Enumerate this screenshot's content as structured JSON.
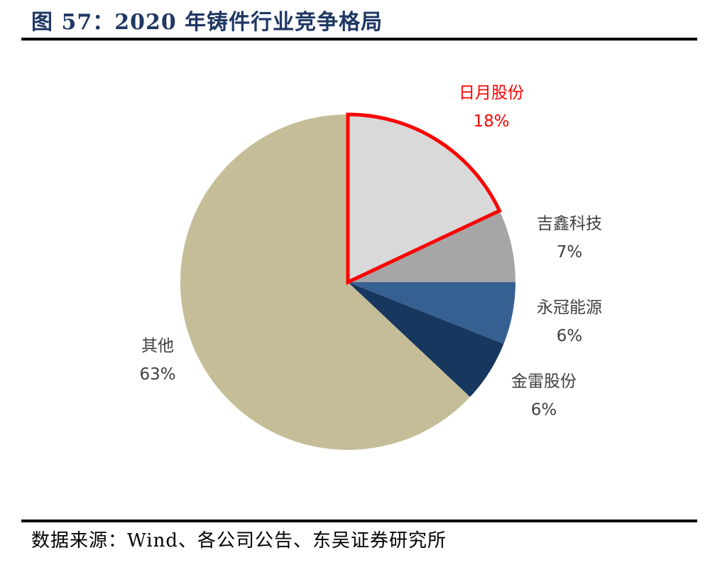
{
  "title": "图 57：2020 年铸件行业竞争格局",
  "source": "数据来源：Wind、各公司公告、东吴证券研究所",
  "colors": {
    "title": "#1f3864",
    "highlight": "#ff0000",
    "label": "#404040"
  },
  "chart_data": {
    "type": "pie",
    "slices": [
      {
        "name": "日月股份",
        "value": 18,
        "label": "18%",
        "color": "#d9d9d9",
        "highlight": true
      },
      {
        "name": "吉鑫科技",
        "value": 7,
        "label": "7%",
        "color": "#a6a6a6"
      },
      {
        "name": "永冠能源",
        "value": 6,
        "label": "6%",
        "color": "#376092"
      },
      {
        "name": "金雷股份",
        "value": 6,
        "label": "6%",
        "color": "#17375e"
      },
      {
        "name": "其他",
        "value": 63,
        "label": "63%",
        "color": "#c4bd97"
      }
    ],
    "start_angle": "12 o'clock",
    "direction": "clockwise",
    "legend": "none (category labels beside slices)"
  }
}
